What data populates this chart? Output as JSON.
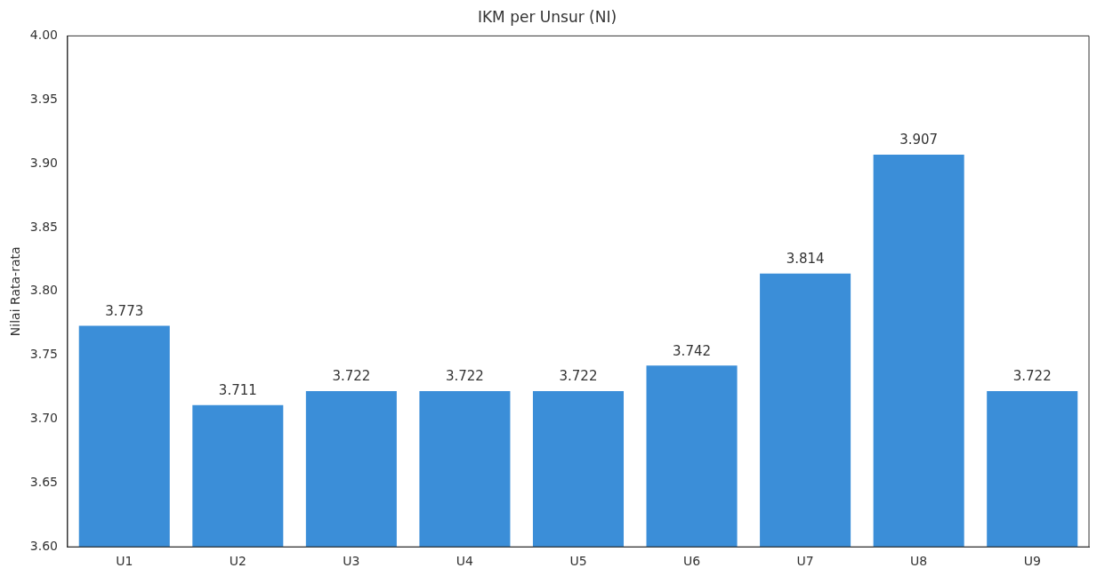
{
  "chart_data": {
    "type": "bar",
    "title": "IKM per Unsur (NI)",
    "ylabel": "Nilai Rata-rata",
    "categories": [
      "U1",
      "U2",
      "U3",
      "U4",
      "U5",
      "U6",
      "U7",
      "U8",
      "U9"
    ],
    "values": [
      3.773,
      3.711,
      3.722,
      3.722,
      3.722,
      3.742,
      3.814,
      3.907,
      3.722
    ],
    "color": "#3b8ed8",
    "ylim": [
      3.6,
      4.0
    ],
    "yticks": [
      {
        "value": 3.6,
        "label": "3.60"
      },
      {
        "value": 3.65,
        "label": "3.65"
      },
      {
        "value": 3.7,
        "label": "3.70"
      },
      {
        "value": 3.75,
        "label": "3.75"
      },
      {
        "value": 3.8,
        "label": "3.80"
      },
      {
        "value": 3.85,
        "label": "3.85"
      },
      {
        "value": 3.9,
        "label": "3.90"
      },
      {
        "value": 3.95,
        "label": "3.95"
      },
      {
        "value": 4.0,
        "label": "4.00"
      }
    ],
    "data_labels": true,
    "grid": false,
    "legend": false
  }
}
